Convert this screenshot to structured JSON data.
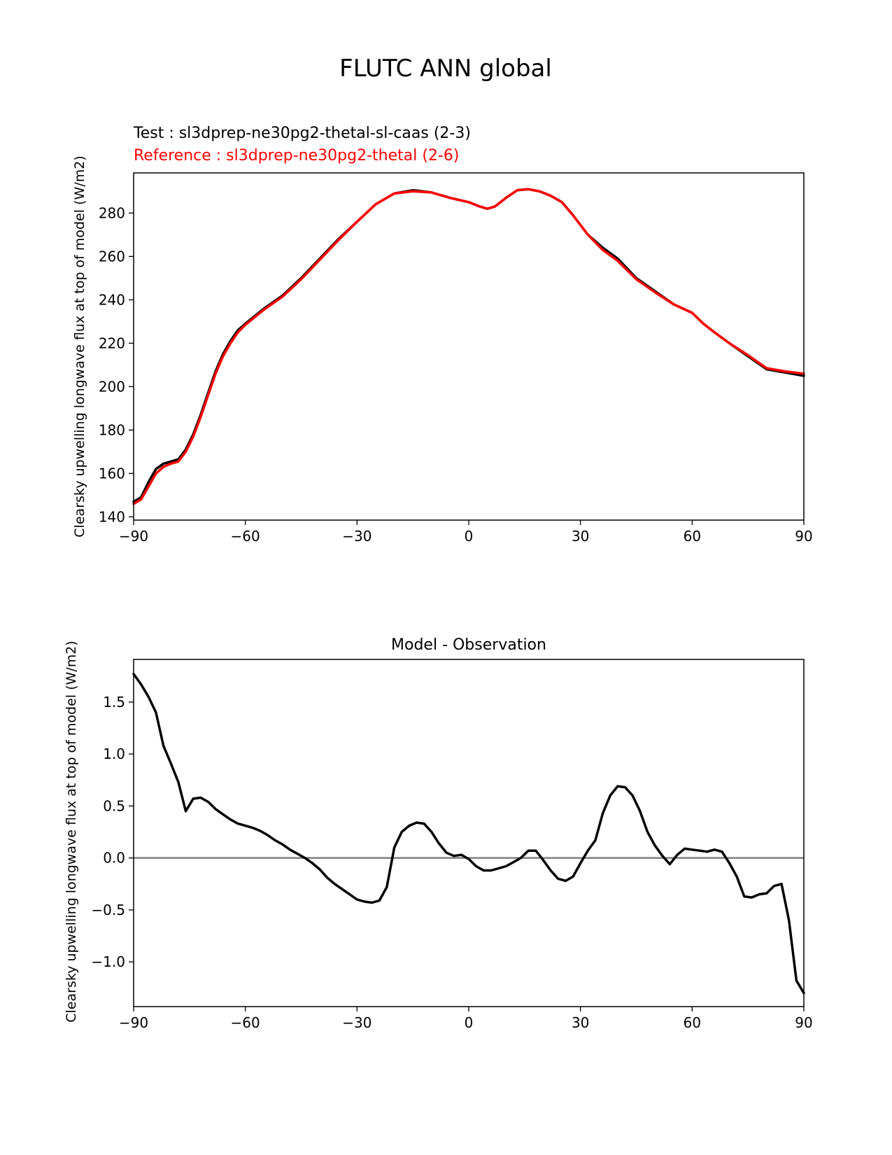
{
  "figure": {
    "suptitle": "FLUTC ANN global"
  },
  "chart_data": [
    {
      "type": "line",
      "title_test": "Test : sl3dprep-ne30pg2-thetal-sl-caas (2-3)",
      "title_reference": "Reference : sl3dprep-ne30pg2-thetal (2-6)",
      "xlabel": "",
      "ylabel": "Clearsky upwelling longwave flux at top of model (W/m2)",
      "xlim": [
        -90,
        90
      ],
      "ylim": [
        138.5,
        298.5
      ],
      "xticks": [
        -90,
        -60,
        -30,
        0,
        30,
        60,
        90
      ],
      "xtick_labels": [
        "−90",
        "−60",
        "−30",
        "0",
        "30",
        "60",
        "90"
      ],
      "yticks": [
        140,
        160,
        180,
        200,
        220,
        240,
        260,
        280
      ],
      "ytick_labels": [
        "140",
        "160",
        "180",
        "200",
        "220",
        "240",
        "260",
        "280"
      ],
      "grid": false,
      "colors": {
        "test": "#000000",
        "reference": "#ff0000"
      },
      "x": [
        -90,
        -88,
        -86,
        -84,
        -82,
        -80,
        -78,
        -76,
        -74,
        -72,
        -70,
        -68,
        -66,
        -64,
        -62,
        -60,
        -55,
        -50,
        -45,
        -40,
        -35,
        -30,
        -25,
        -20,
        -15,
        -10,
        -5,
        0,
        3,
        5,
        7,
        10,
        13,
        16,
        19,
        22,
        25,
        28,
        32,
        36,
        40,
        45,
        50,
        55,
        60,
        63,
        66,
        70,
        75,
        80,
        85,
        90
      ],
      "series": [
        {
          "key": "test",
          "values": [
            147,
            149,
            156,
            162,
            164.5,
            165.5,
            166.5,
            171,
            178,
            187,
            197,
            207,
            215,
            221,
            226,
            229,
            236,
            242,
            250,
            259,
            268,
            276,
            284,
            289,
            290.5,
            289.5,
            287,
            285,
            283,
            282,
            283,
            287,
            290.5,
            291,
            290,
            288,
            285,
            279,
            270,
            264,
            259,
            250,
            244,
            238,
            234,
            229,
            225,
            220,
            214,
            208,
            206.5,
            205
          ]
        },
        {
          "key": "reference",
          "values": [
            146,
            148,
            154,
            160,
            163,
            164.5,
            165.5,
            170,
            177,
            186,
            196,
            206,
            214,
            220,
            225,
            228.5,
            235.5,
            241.5,
            249.5,
            258.5,
            267.5,
            276,
            284,
            289,
            290,
            289.5,
            287,
            285,
            283,
            282,
            283,
            287,
            290.5,
            291,
            290,
            288,
            285,
            279,
            270,
            263,
            258,
            249.5,
            243.5,
            238,
            234,
            229,
            225,
            220,
            214.5,
            208.5,
            207,
            206
          ]
        }
      ]
    },
    {
      "type": "line",
      "title": "Model - Observation",
      "xlabel": "",
      "ylabel": "Clearsky upwelling longwave flux at top of model (W/m2)",
      "xlim": [
        -90,
        90
      ],
      "ylim": [
        -1.43,
        1.91
      ],
      "xticks": [
        -90,
        -60,
        -30,
        0,
        30,
        60,
        90
      ],
      "xtick_labels": [
        "−90",
        "−60",
        "−30",
        "0",
        "30",
        "60",
        "90"
      ],
      "yticks": [
        -1.0,
        -0.5,
        0.0,
        0.5,
        1.0,
        1.5
      ],
      "ytick_labels": [
        "−1.0",
        "−0.5",
        "0.0",
        "0.5",
        "1.0",
        "1.5"
      ],
      "grid": false,
      "zero_line": {
        "y": 0,
        "color": "#808080"
      },
      "series": [
        {
          "key": "difference",
          "color": "#000000",
          "x": [
            -90,
            -88,
            -86,
            -84,
            -82,
            -80,
            -78,
            -76,
            -74,
            -72,
            -70,
            -68,
            -66,
            -64,
            -62,
            -60,
            -58,
            -56,
            -54,
            -52,
            -50,
            -48,
            -46,
            -44,
            -42,
            -40,
            -38,
            -36,
            -34,
            -32,
            -30,
            -28,
            -26,
            -24,
            -22,
            -20,
            -18,
            -16,
            -14,
            -12,
            -10,
            -8,
            -6,
            -4,
            -2,
            0,
            2,
            4,
            6,
            8,
            10,
            12,
            14,
            16,
            18,
            20,
            22,
            24,
            26,
            28,
            30,
            32,
            34,
            36,
            38,
            40,
            42,
            44,
            46,
            48,
            50,
            52,
            54,
            56,
            58,
            60,
            62,
            64,
            66,
            68,
            70,
            72,
            74,
            76,
            78,
            80,
            82,
            84,
            86,
            88,
            90
          ],
          "values": [
            1.77,
            1.67,
            1.55,
            1.4,
            1.08,
            0.91,
            0.73,
            0.45,
            0.57,
            0.58,
            0.54,
            0.47,
            0.42,
            0.37,
            0.33,
            0.31,
            0.29,
            0.26,
            0.22,
            0.17,
            0.13,
            0.08,
            0.04,
            0.0,
            -0.05,
            -0.11,
            -0.19,
            -0.25,
            -0.3,
            -0.35,
            -0.4,
            -0.42,
            -0.43,
            -0.41,
            -0.28,
            0.1,
            0.25,
            0.31,
            0.34,
            0.33,
            0.25,
            0.14,
            0.05,
            0.02,
            0.03,
            -0.01,
            -0.08,
            -0.12,
            -0.12,
            -0.1,
            -0.08,
            -0.04,
            0.0,
            0.07,
            0.07,
            -0.02,
            -0.12,
            -0.2,
            -0.22,
            -0.18,
            -0.05,
            0.07,
            0.17,
            0.43,
            0.6,
            0.69,
            0.68,
            0.6,
            0.45,
            0.25,
            0.12,
            0.02,
            -0.06,
            0.03,
            0.09,
            0.08,
            0.07,
            0.06,
            0.08,
            0.06,
            -0.05,
            -0.18,
            -0.37,
            -0.38,
            -0.35,
            -0.34,
            -0.27,
            -0.25,
            -0.6,
            -1.18,
            -1.3
          ]
        }
      ]
    }
  ]
}
